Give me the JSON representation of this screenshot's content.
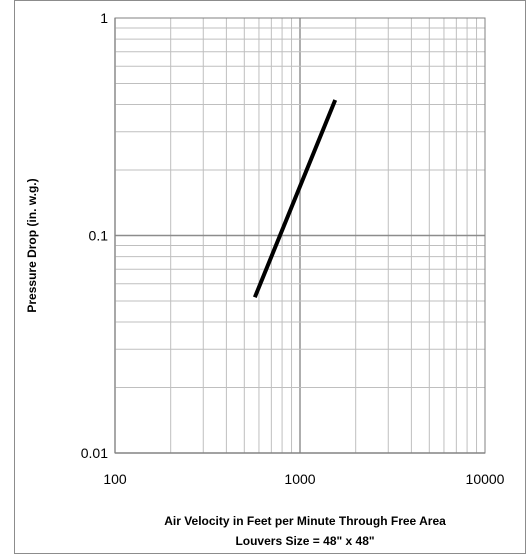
{
  "chart_data": {
    "type": "line",
    "xscale": "log",
    "yscale": "log",
    "xlim": [
      100,
      10000
    ],
    "ylim": [
      0.01,
      1
    ],
    "grid": true,
    "xticks": [
      100,
      1000,
      10000
    ],
    "xtick_labels": [
      "100",
      "1000",
      "10000"
    ],
    "yticks": [
      0.01,
      0.1,
      1
    ],
    "ytick_labels": [
      "0.01",
      "0.1",
      "1"
    ],
    "xlabel": "Air Velocity in Feet per Minute Through Free Area",
    "xlabel2": "Louvers Size = 48\" x 48\"",
    "ylabel": "Pressure Drop (in. w.g.)",
    "series": [
      {
        "x": [
          570,
          1550
        ],
        "y": [
          0.052,
          0.42
        ],
        "color": "#000000"
      }
    ]
  }
}
